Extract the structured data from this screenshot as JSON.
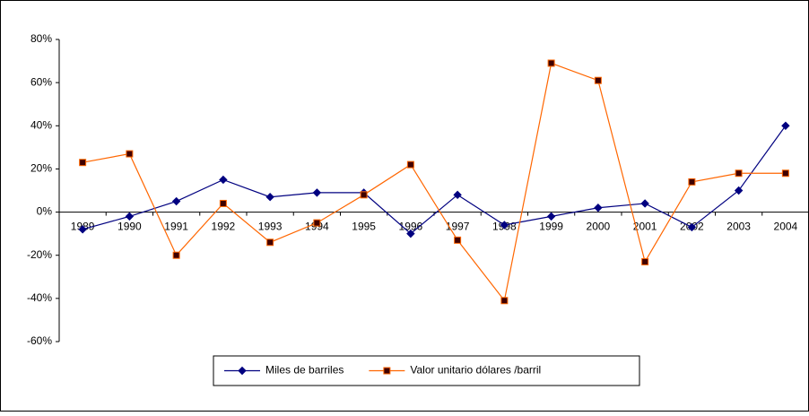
{
  "chart_data": {
    "type": "line",
    "categories": [
      "1989",
      "1990",
      "1991",
      "1992",
      "1993",
      "1994",
      "1995",
      "1996",
      "1997",
      "1998",
      "1999",
      "2000",
      "2001",
      "2002",
      "2003",
      "2004"
    ],
    "series": [
      {
        "name": "Miles de barriles",
        "color": "#000080",
        "marker": "diamond",
        "marker_color": "#000080",
        "values": [
          -8,
          -2,
          5,
          15,
          7,
          9,
          9,
          -10,
          8,
          -6,
          -2,
          2,
          4,
          -7,
          10,
          40
        ]
      },
      {
        "name": "Valor unitario dólares /barril",
        "color": "#ff6600",
        "marker": "square",
        "marker_color": "#400000",
        "values": [
          23,
          27,
          -20,
          4,
          -14,
          -5,
          8,
          22,
          -13,
          -41,
          69,
          61,
          -23,
          14,
          18,
          18
        ]
      }
    ],
    "ylim": [
      -60,
      80
    ],
    "yticks": [
      {
        "value": -60,
        "label": "-60%"
      },
      {
        "value": -40,
        "label": "-40%"
      },
      {
        "value": -20,
        "label": "-20%"
      },
      {
        "value": 0,
        "label": "0%"
      },
      {
        "value": 20,
        "label": "20%"
      },
      {
        "value": 40,
        "label": "40%"
      },
      {
        "value": 60,
        "label": "60%"
      },
      {
        "value": 80,
        "label": "80%"
      }
    ],
    "grid": false,
    "legend": "bottom"
  }
}
